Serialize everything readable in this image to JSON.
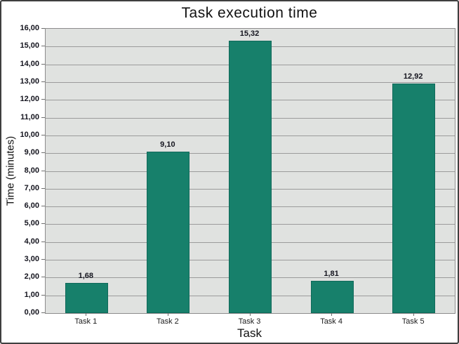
{
  "chart_data": {
    "type": "bar",
    "title": "Task execution time",
    "xlabel": "Task",
    "ylabel": "Time (minutes)",
    "categories": [
      "Task 1",
      "Task 2",
      "Task 3",
      "Task 4",
      "Task 5"
    ],
    "values": [
      1.68,
      9.1,
      15.32,
      1.81,
      12.92
    ],
    "value_labels": [
      "1,68",
      "9,10",
      "15,32",
      "1,81",
      "12,92"
    ],
    "ylim": [
      0,
      16
    ],
    "y_tick_step": 1,
    "y_tick_labels": [
      "0,00",
      "1,00",
      "2,00",
      "3,00",
      "4,00",
      "5,00",
      "6,00",
      "7,00",
      "8,00",
      "9,00",
      "10,00",
      "11,00",
      "12,00",
      "13,00",
      "14,00",
      "15,00",
      "16,00"
    ],
    "grid": "horizontal",
    "legend": "none",
    "colors": {
      "bar": "#17806b",
      "bar_border": "#10695a",
      "plot_background": "#e0e2e0",
      "gridline": "#9b9b9b",
      "plot_border": "#8c8c8c",
      "text": "#14141e",
      "frame_border": "#3f3f3f",
      "background": "#ffffff"
    }
  }
}
